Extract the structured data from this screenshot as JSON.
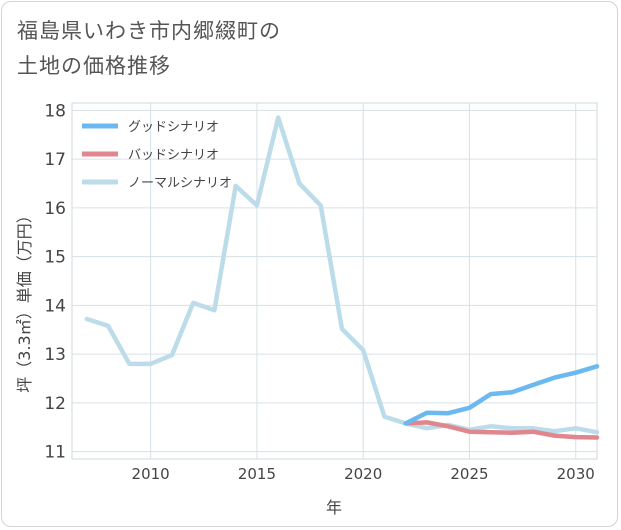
{
  "title_lines": [
    "福島県いわき市内郷綴町の",
    "土地の価格推移"
  ],
  "chart_data": {
    "type": "line",
    "title": "福島県いわき市内郷綴町の土地の価格推移",
    "xlabel": "年",
    "ylabel": "坪（3.3㎡）単価（万円）",
    "xlim": [
      2006.3,
      2031.0
    ],
    "ylim": [
      10.85,
      18.15
    ],
    "x_ticks": [
      2010,
      2015,
      2020,
      2025,
      2030
    ],
    "y_ticks": [
      11,
      12,
      13,
      14,
      15,
      16,
      17,
      18
    ],
    "grid": true,
    "legend_position": "top-left",
    "series": [
      {
        "name": "グッドシナリオ",
        "color": "#6cb8f0",
        "x": [
          2022,
          2023,
          2024,
          2025,
          2026,
          2027,
          2028,
          2029,
          2030,
          2031
        ],
        "values": [
          11.58,
          11.8,
          11.79,
          11.9,
          12.18,
          12.22,
          12.37,
          12.52,
          12.62,
          12.75
        ]
      },
      {
        "name": "バッドシナリオ",
        "color": "#e0868f",
        "x": [
          2022,
          2023,
          2024,
          2025,
          2026,
          2027,
          2028,
          2029,
          2030,
          2031
        ],
        "values": [
          11.58,
          11.6,
          11.52,
          11.41,
          11.4,
          11.39,
          11.41,
          11.33,
          11.3,
          11.29
        ]
      },
      {
        "name": "ノーマルシナリオ",
        "color": "#bcdce9",
        "x": [
          2007,
          2008,
          2009,
          2010,
          2011,
          2012,
          2013,
          2014,
          2015,
          2016,
          2017,
          2018,
          2019,
          2020,
          2021,
          2022,
          2023,
          2024,
          2025,
          2026,
          2027,
          2028,
          2029,
          2030,
          2031
        ],
        "values": [
          13.72,
          13.58,
          12.8,
          12.8,
          12.98,
          14.05,
          13.9,
          16.45,
          16.05,
          17.85,
          16.5,
          16.05,
          13.52,
          13.08,
          11.72,
          11.58,
          11.48,
          11.55,
          11.45,
          11.52,
          11.48,
          11.48,
          11.42,
          11.48,
          11.4
        ]
      }
    ]
  }
}
